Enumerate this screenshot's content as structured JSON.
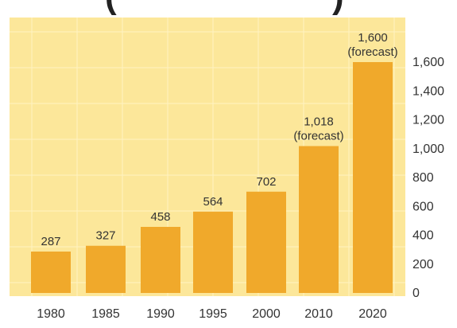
{
  "chart_data": {
    "type": "bar",
    "title_fragment": "(",
    "title_fragment_end": ")",
    "categories": [
      "1980",
      "1985",
      "1990",
      "1995",
      "2000",
      "2010",
      "2020"
    ],
    "values": [
      287,
      327,
      458,
      564,
      702,
      1018,
      1600
    ],
    "data_labels": [
      [
        "287"
      ],
      [
        "327"
      ],
      [
        "458"
      ],
      [
        "564"
      ],
      [
        "702"
      ],
      [
        "1,018",
        "(forecast)"
      ],
      [
        "1,600",
        "(forecast)"
      ]
    ],
    "y_ticks": [
      0,
      200,
      400,
      600,
      800,
      1000,
      1200,
      1400,
      1600
    ],
    "y_tick_labels": [
      "0",
      "200",
      "400",
      "600",
      "800",
      "1,000",
      "1,200",
      "1,400",
      "1,600"
    ],
    "ylim": [
      0,
      1600
    ],
    "y_axis_side": "right",
    "grid": true,
    "colors": {
      "bar": "#f0a92b",
      "panel": "#fce79a",
      "grid": "#fff3c2",
      "outer": "#ffffff"
    }
  }
}
